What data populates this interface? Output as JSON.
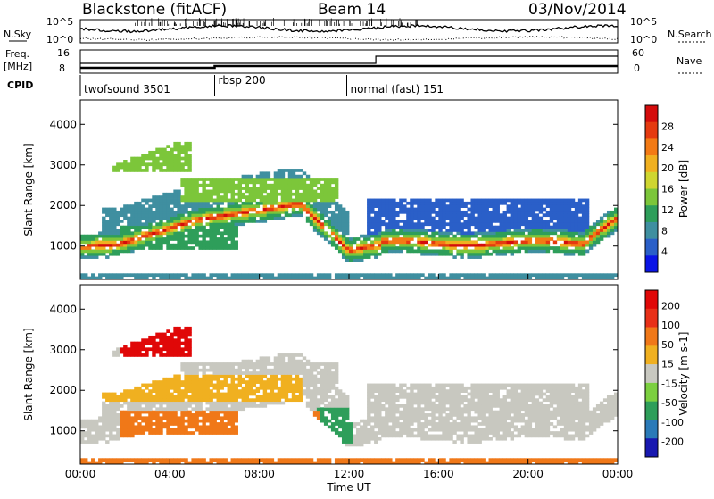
{
  "header": {
    "radar": "Blackstone (fitACF)",
    "beam": "Beam 14",
    "date": "03/Nov/2014"
  },
  "side_labels": {
    "nsky": "N.Sky",
    "freq_line1": "Freq.",
    "freq_line2": "[MHz]",
    "cpid": "CPID",
    "nsearch": "N.Search",
    "nave": "Nave"
  },
  "noise_panel": {
    "left_ticks": [
      "10^5",
      "10^0"
    ],
    "right_ticks": [
      "10^5",
      "10^0"
    ]
  },
  "freq_panel": {
    "left_ticks": [
      "16",
      "8"
    ],
    "right_ticks": [
      "60",
      "0"
    ]
  },
  "cpid_segments": [
    {
      "label": "twofsound 3501",
      "start_hour": 0
    },
    {
      "label": "rbsp 200",
      "start_hour": 6.0
    },
    {
      "label": "normal (fast) 151",
      "start_hour": 11.9
    }
  ],
  "chart_data": [
    {
      "type": "heatmap",
      "panel": "power",
      "xlabel": "",
      "ylabel": "Slant Range [km]",
      "x_ticks": [
        "00:00",
        "04:00",
        "08:00",
        "12:00",
        "16:00",
        "20:00",
        "00:00"
      ],
      "xlim_hours": [
        0,
        24
      ],
      "ylim_km": [
        180,
        4600
      ],
      "y_ticks": [
        1000,
        2000,
        3000,
        4000
      ],
      "colorbar": {
        "label": "Power [dB]",
        "ticks": [
          "4",
          "8",
          "12",
          "16",
          "20",
          "24",
          "28"
        ],
        "colors": [
          "#0a14e6",
          "#2a5fc8",
          "#3f8fa0",
          "#2e9e5a",
          "#7cc63a",
          "#cfd630",
          "#f0b020",
          "#f37a15",
          "#e53a10",
          "#d40c0c"
        ]
      }
    },
    {
      "type": "heatmap",
      "panel": "velocity",
      "xlabel": "Time UT",
      "ylabel": "Slant Range [km]",
      "x_ticks": [
        "00:00",
        "04:00",
        "08:00",
        "12:00",
        "16:00",
        "20:00",
        "00:00"
      ],
      "xlim_hours": [
        0,
        24
      ],
      "ylim_km": [
        180,
        4600
      ],
      "y_ticks": [
        1000,
        2000,
        3000,
        4000
      ],
      "colorbar": {
        "label": "Velocity [m s-1]",
        "ticks": [
          "200",
          "100",
          "50",
          "15",
          "-15",
          "-50",
          "-100",
          "-200"
        ],
        "colors": [
          "#1818b0",
          "#2a7ab8",
          "#2e9e5a",
          "#7cd040",
          "#c8c8c0",
          "#f0b020",
          "#f07818",
          "#e83018",
          "#e00808"
        ]
      }
    }
  ]
}
